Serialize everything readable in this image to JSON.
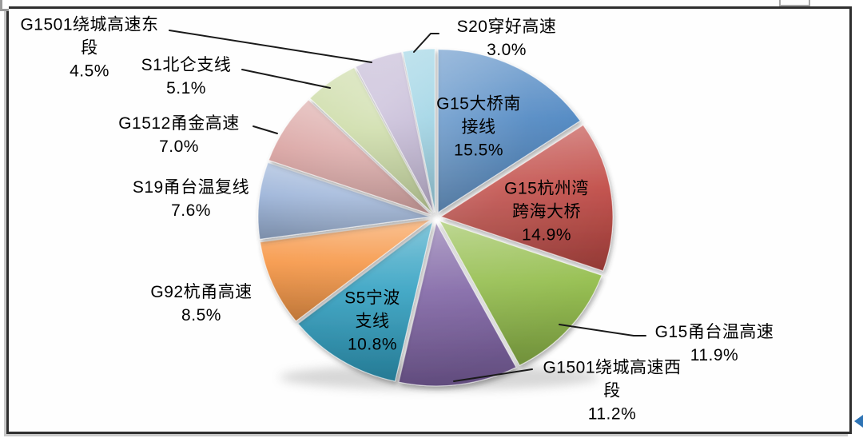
{
  "chart_data": {
    "type": "pie",
    "title": "",
    "legend_position": "none",
    "start_angle_deg": 0,
    "direction": "clockwise",
    "units": "%",
    "total_pct": 100.0,
    "style": "3d-exploded-pie",
    "categories": [
      "G15大桥南接线",
      "G15杭州湾跨海大桥",
      "G15甬台温高速",
      "G1501绕城高速西段",
      "S5宁波支线",
      "G92杭甬高速",
      "S19甬台温复线",
      "G1512甬金高速",
      "S1北仑支线",
      "G1501绕城高速东段",
      "S20穿好高速"
    ],
    "values": [
      15.5,
      14.9,
      11.9,
      11.2,
      10.8,
      8.5,
      7.6,
      7.0,
      5.1,
      4.5,
      3.0
    ],
    "slices": [
      {
        "label": "G15大桥南接线",
        "value_pct": 15.5,
        "color": "#4580BE",
        "text_color": "#000000",
        "label_placement": "inside",
        "label_lines": [
          "G15大桥南",
          "接线",
          "15.5%"
        ]
      },
      {
        "label": "G15杭州湾跨海大桥",
        "value_pct": 14.9,
        "color": "#C04A45",
        "text_color": "#000000",
        "label_placement": "inside",
        "label_lines": [
          "G15杭州湾",
          "跨海大桥",
          "14.9%"
        ]
      },
      {
        "label": "G15甬台温高速",
        "value_pct": 11.9,
        "color": "#94BD4D",
        "text_color": "#000000",
        "label_placement": "outside",
        "label_lines": [
          "G15甬台温高速",
          "11.9%"
        ]
      },
      {
        "label": "G1501绕城高速西段",
        "value_pct": 11.2,
        "color": "#7F64A4",
        "text_color": "#000000",
        "label_placement": "outside",
        "label_lines": [
          "G1501绕城高速西",
          "段",
          "11.2%"
        ]
      },
      {
        "label": "S5宁波支线",
        "value_pct": 10.8,
        "color": "#2F9FC1",
        "text_color": "#000000",
        "label_placement": "inside",
        "label_lines": [
          "S5宁波",
          "支线",
          "10.8%"
        ]
      },
      {
        "label": "G92杭甬高速",
        "value_pct": 8.5,
        "color": "#F6933F",
        "text_color": "#000000",
        "label_placement": "outside",
        "label_lines": [
          "G92杭甬高速",
          "8.5%"
        ]
      },
      {
        "label": "S19甬台温复线",
        "value_pct": 7.6,
        "color": "#92ACD4",
        "text_color": "#000000",
        "label_placement": "outside",
        "label_lines": [
          "S19甬台温复线",
          "7.6%"
        ]
      },
      {
        "label": "G1512甬金高速",
        "value_pct": 7.0,
        "color": "#D29290",
        "text_color": "#000000",
        "label_placement": "outside",
        "label_lines": [
          "G1512甬金高速",
          "7.0%"
        ]
      },
      {
        "label": "S1北仑支线",
        "value_pct": 5.1,
        "color": "#BACF87",
        "text_color": "#000000",
        "label_placement": "outside",
        "label_lines": [
          "S1北仑支线",
          "5.1%"
        ]
      },
      {
        "label": "G1501绕城高速东段",
        "value_pct": 4.5,
        "color": "#B2A3C9",
        "text_color": "#000000",
        "label_placement": "outside",
        "label_lines": [
          "G1501绕城高速东",
          "段",
          "4.5%"
        ]
      },
      {
        "label": "S20穿好高速",
        "value_pct": 3.0,
        "color": "#82C7DD",
        "text_color": "#000000",
        "label_placement": "outside",
        "label_lines": [
          "S20穿好高速",
          "3.0%"
        ]
      }
    ]
  },
  "decorations": {
    "frame_border_color": "#2f2f2f",
    "leader_line_color": "#1a1a1a",
    "arrow_fragment_color": "#2E74B5"
  }
}
